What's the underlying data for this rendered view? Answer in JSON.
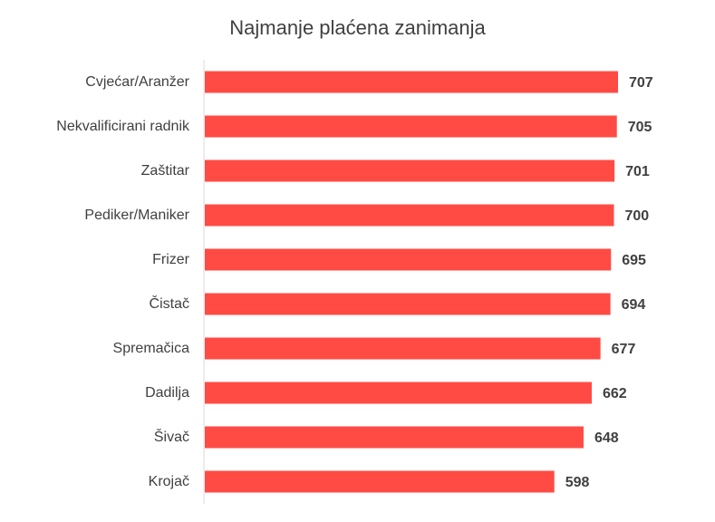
{
  "chart_data": {
    "type": "bar",
    "orientation": "horizontal",
    "title": "Najmanje plaćena zanimanja",
    "xlabel": "",
    "ylabel": "",
    "categories": [
      "Cvjećar/Aranžer",
      "Nekvalificirani radnik",
      "Zaštitar",
      "Pediker/Maniker",
      "Frizer",
      "Čistač",
      "Spremačica",
      "Dadilja",
      "Šivač",
      "Krojač"
    ],
    "values": [
      707,
      705,
      701,
      700,
      695,
      694,
      677,
      662,
      648,
      598
    ],
    "xlim": [
      0,
      707
    ],
    "grid": false,
    "legend": "none",
    "bar_color": "#FF4B44",
    "axis_color": "#D9D9D9",
    "label_color": "#404040",
    "value_label_color": "#404040"
  }
}
